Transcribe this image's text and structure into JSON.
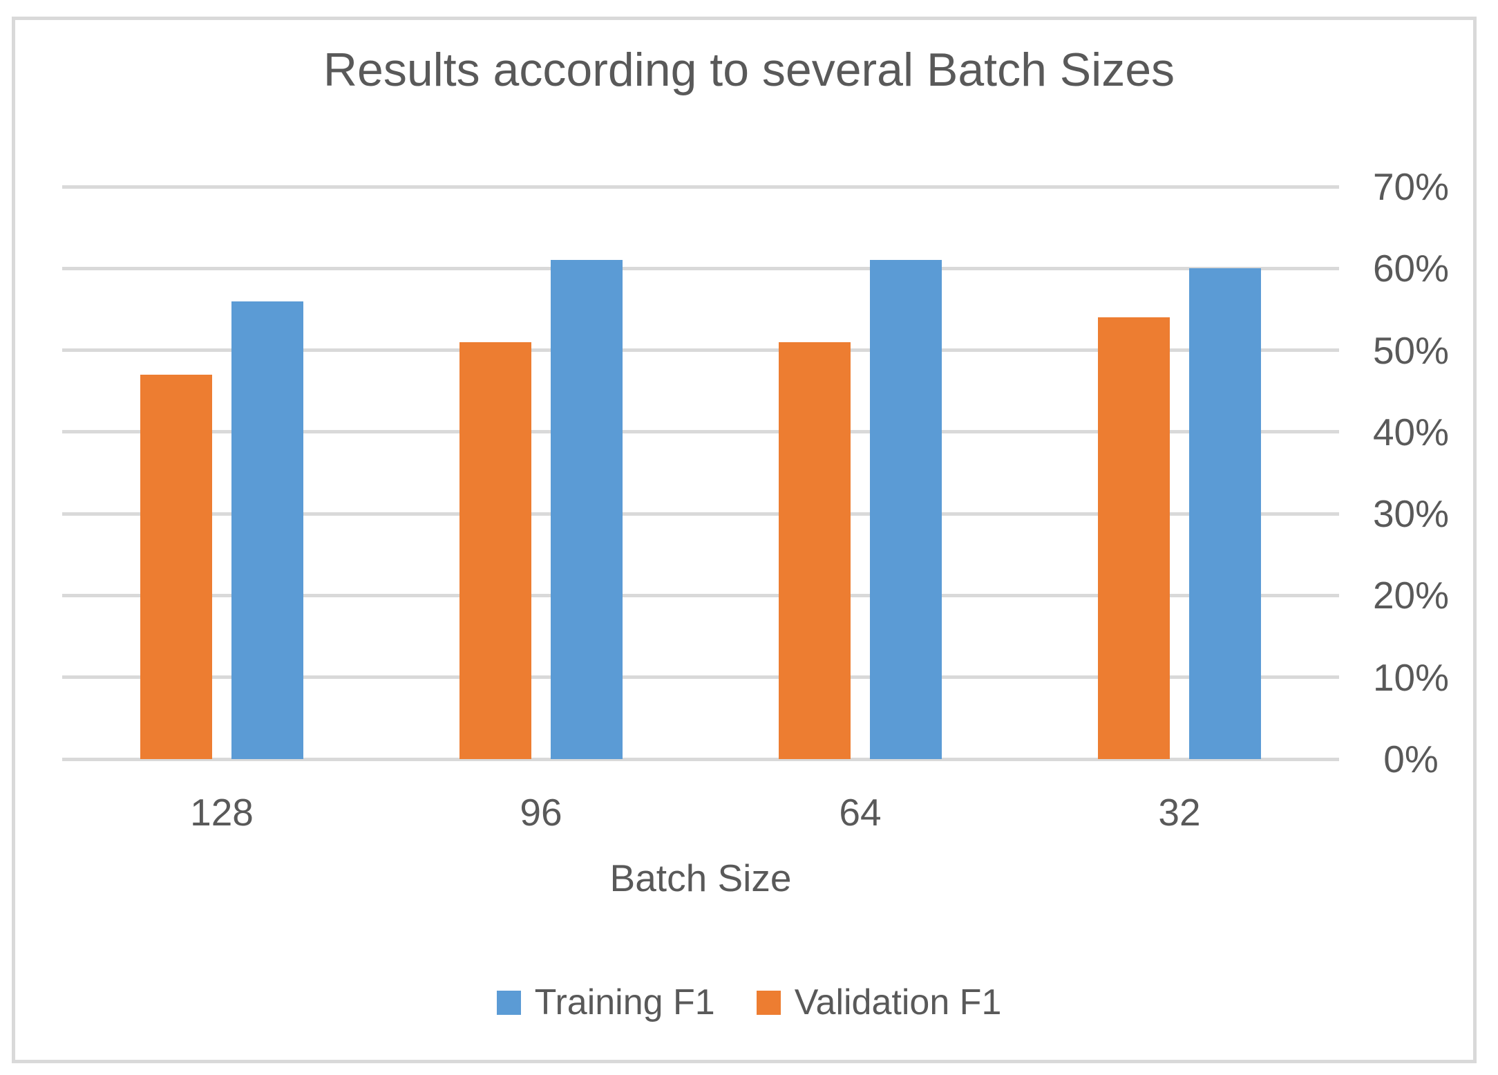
{
  "chart_data": {
    "type": "bar",
    "title": "Results according to several Batch Sizes",
    "xlabel": "Batch Size",
    "ylabel": "",
    "categories": [
      "128",
      "96",
      "64",
      "32"
    ],
    "series": [
      {
        "name": "Training F1",
        "color": "#5B9BD5",
        "values": [
          56,
          61,
          61,
          60
        ]
      },
      {
        "name": "Validation F1",
        "color": "#ED7D31",
        "values": [
          47,
          51,
          51,
          54
        ]
      }
    ],
    "group_draw_order": [
      1,
      0
    ],
    "ylim": [
      0,
      70
    ],
    "y_tick_values": [
      0,
      10,
      20,
      30,
      40,
      50,
      60,
      70
    ],
    "y_tick_labels": [
      "0%",
      "10%",
      "20%",
      "30%",
      "40%",
      "50%",
      "60%",
      "70%"
    ],
    "y_axis_side": "right",
    "grid": true,
    "legend_position": "bottom"
  },
  "colors": {
    "gridline": "#D9D9D9",
    "frame_border": "#D9D9D9",
    "text": "#595959",
    "background": "#FFFFFF"
  }
}
